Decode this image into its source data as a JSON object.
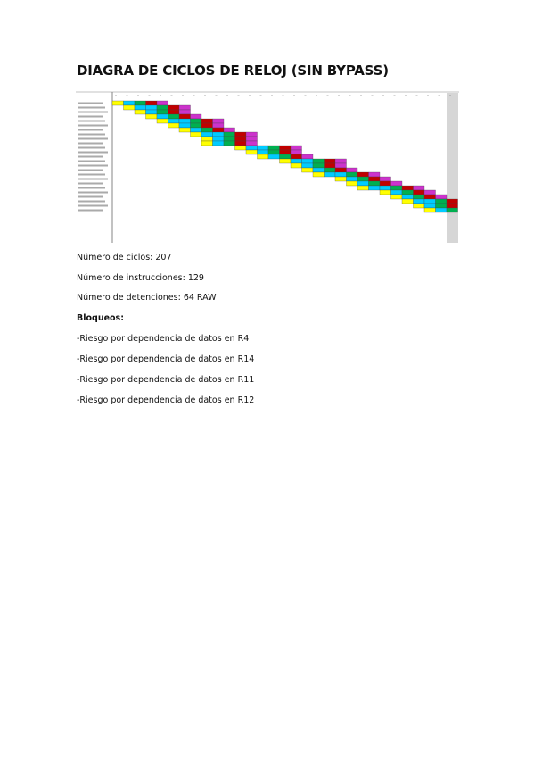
{
  "header": {
    "title": "DIAGRA DE CICLOS DE RELOJ (SIN BYPASS)"
  },
  "lines": [
    "Número de ciclos: 207",
    "Número de instrucciones: 129",
    "Número de detenciones: 64 RAW"
  ],
  "section": {
    "heading": "Bloqueos:",
    "items": [
      "-Riesgo por dependencia de datos en R4",
      "-Riesgo por dependencia de datos en R14",
      "-Riesgo por dependencia de datos en R11",
      "-Riesgo por dependencia de datos en R12"
    ]
  }
}
